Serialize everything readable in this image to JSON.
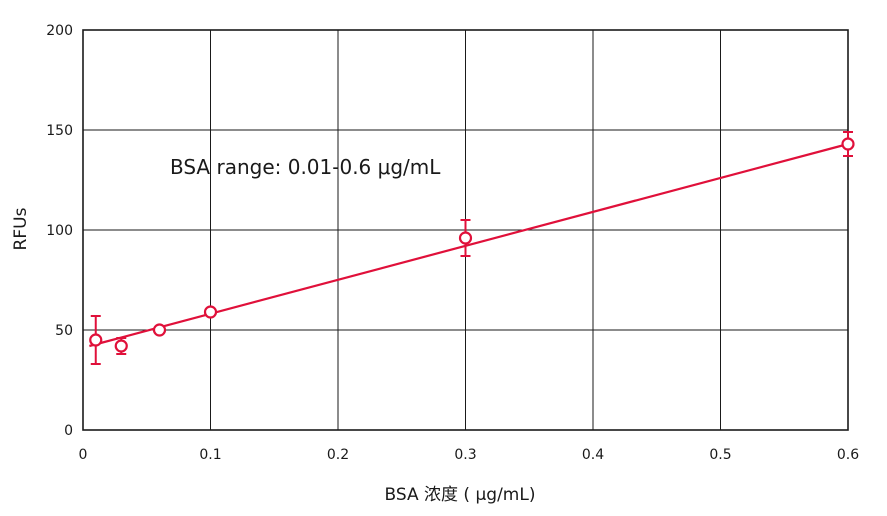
{
  "chart_data": {
    "type": "scatter",
    "title": "",
    "xlabel": "BSA 浓度 ( μg/mL)",
    "ylabel": "RFUs",
    "xlim": [
      0,
      0.6
    ],
    "ylim": [
      0,
      200
    ],
    "x_ticks": [
      "0",
      "0.1",
      "0.2",
      "0.3",
      "0.4",
      "0.5",
      "0.6"
    ],
    "y_ticks": [
      "0",
      "50",
      "100",
      "150",
      "200"
    ],
    "grid": true,
    "annotation": "BSA range: 0.01-0.6 μg/mL",
    "series": [
      {
        "points": [
          {
            "x": 0.01,
            "y": 45,
            "err": 12
          },
          {
            "x": 0.03,
            "y": 42,
            "err": 4
          },
          {
            "x": 0.06,
            "y": 50,
            "err": 1
          },
          {
            "x": 0.1,
            "y": 59,
            "err": 1
          },
          {
            "x": 0.3,
            "y": 96,
            "err": 9
          },
          {
            "x": 0.6,
            "y": 143,
            "err": 6
          }
        ],
        "fit_line": {
          "x": [
            0.005,
            0.6
          ],
          "y": [
            42,
            143
          ]
        },
        "color": "#e0103a"
      }
    ],
    "colors": {
      "grid": "#1a1a1a",
      "series": "#e0103a",
      "text": "#1a1a1a"
    }
  }
}
